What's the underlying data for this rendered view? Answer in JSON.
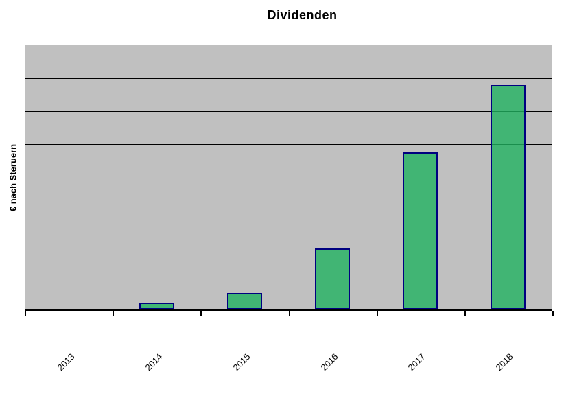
{
  "chart_data": {
    "type": "bar",
    "title": "Dividenden",
    "xlabel": "",
    "ylabel": "€ nach Steruern",
    "categories": [
      "2013",
      "2014",
      "2015",
      "2016",
      "2017",
      "2018"
    ],
    "values": [
      0,
      0.2,
      0.5,
      1.85,
      4.75,
      6.8
    ],
    "ylim": [
      0,
      8
    ],
    "y_gridline_interval": 1,
    "y_tick_labels_visible": false,
    "x_tick_label_rotation_deg": 45,
    "grid": "horizontal",
    "legend": "none",
    "colors": {
      "bar_fill_rgb": "33,178,96",
      "bar_fill_alpha": 0.8,
      "bar_border": "#000080",
      "plot_background": "#C0C0C0",
      "plot_border": "#848484",
      "gridline": "#000000",
      "axis_line": "#000000",
      "text": "#000000",
      "page_background": "#FFFFFF"
    }
  }
}
